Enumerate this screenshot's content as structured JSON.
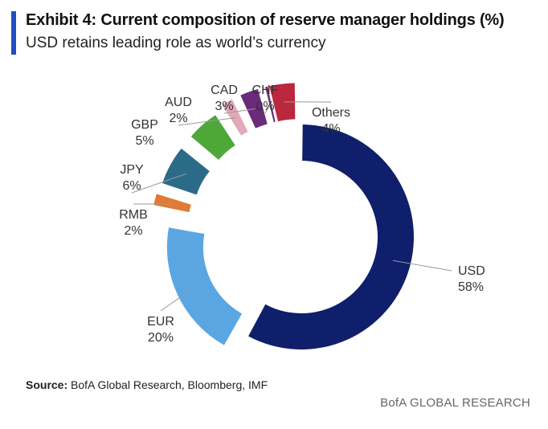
{
  "header": {
    "title": "Exhibit 4: Current composition of reserve manager holdings (%)",
    "subtitle": "USD retains leading role as world’s currency"
  },
  "chart_data": {
    "type": "pie",
    "title": "Exhibit 4: Current composition of reserve manager holdings (%)",
    "subtitle": "USD retains leading role as world’s currency",
    "style": "exploded donut",
    "categories": [
      "USD",
      "EUR",
      "RMB",
      "JPY",
      "GBP",
      "AUD",
      "CAD",
      "CHF",
      "Others"
    ],
    "values": [
      58,
      20,
      2,
      6,
      5,
      2,
      3,
      0,
      4
    ],
    "labels": [
      "58%",
      "20%",
      "2%",
      "6%",
      "5%",
      "2%",
      "3%",
      "0%",
      "4%"
    ],
    "colors": [
      "#0f1f6b",
      "#5aa6e3",
      "#e07a35",
      "#2b6b88",
      "#4ea838",
      "#e2a9b8",
      "#6b2a7a",
      "#6b2a7a",
      "#b9283d"
    ],
    "unit": "%"
  },
  "footer": {
    "source_label": "Source:",
    "source_text": "BofA Global Research, Bloomberg, IMF",
    "brand": "BofA GLOBAL RESEARCH"
  }
}
